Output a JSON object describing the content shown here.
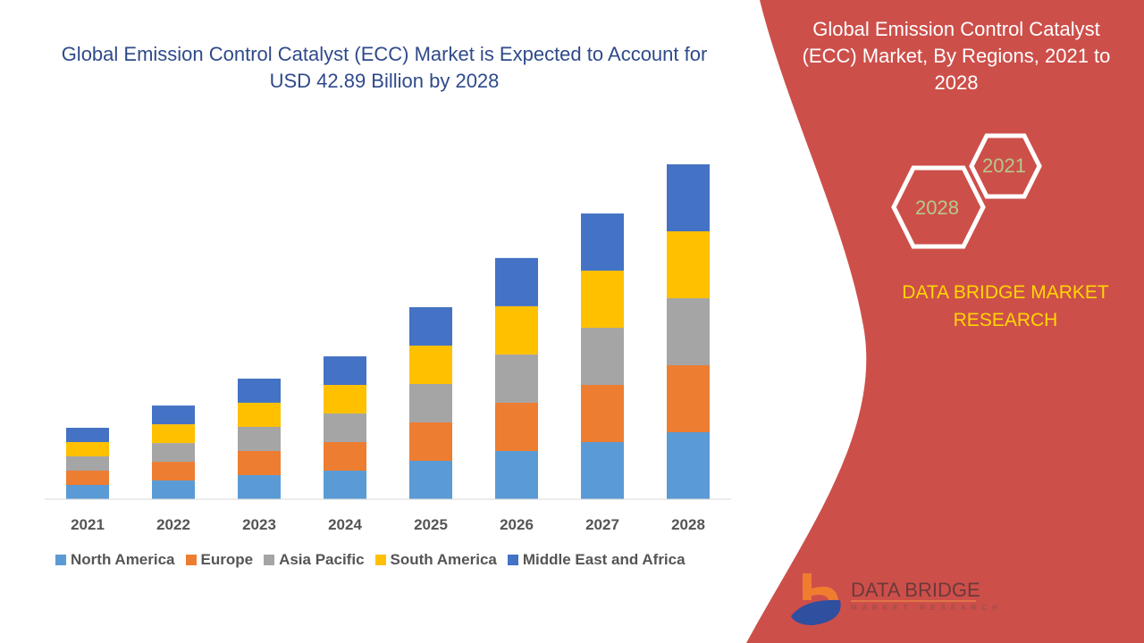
{
  "title": "Global Emission Control Catalyst (ECC) Market is Expected to Account for  USD 42.89 Billion by 2028",
  "side_panel": {
    "title": "Global Emission Control Catalyst (ECC) Market, By Regions, 2021 to 2028",
    "hex_labels": [
      "2021",
      "2028"
    ],
    "brand": "DATA BRIDGE MARKET RESEARCH",
    "logo_text": "DATA BRIDGE",
    "logo_subtext": "MARKET RESEARCH",
    "panel_color": "#cd4f4a"
  },
  "chart_data": {
    "type": "bar",
    "stacked": true,
    "title": "",
    "xlabel": "",
    "ylabel": "",
    "categories": [
      "2021",
      "2022",
      "2023",
      "2024",
      "2025",
      "2026",
      "2027",
      "2028"
    ],
    "series": [
      {
        "name": "North America",
        "color": "#5b9bd5",
        "values": [
          1.83,
          2.4,
          3.09,
          3.66,
          4.92,
          6.18,
          7.32,
          8.58
        ]
      },
      {
        "name": "Europe",
        "color": "#ed7d31",
        "values": [
          1.83,
          2.4,
          3.09,
          3.66,
          4.92,
          6.18,
          7.32,
          8.58
        ]
      },
      {
        "name": "Asia Pacific",
        "color": "#a5a5a5",
        "values": [
          1.83,
          2.4,
          3.09,
          3.66,
          4.92,
          6.18,
          7.32,
          8.58
        ]
      },
      {
        "name": "South America",
        "color": "#ffc000",
        "values": [
          1.83,
          2.4,
          3.09,
          3.66,
          4.92,
          6.18,
          7.32,
          8.58
        ]
      },
      {
        "name": "Middle East and Africa",
        "color": "#4472c4",
        "values": [
          1.83,
          2.4,
          3.09,
          3.66,
          4.92,
          6.18,
          7.32,
          8.58
        ]
      }
    ],
    "grid": false,
    "legend_position": "bottom"
  }
}
